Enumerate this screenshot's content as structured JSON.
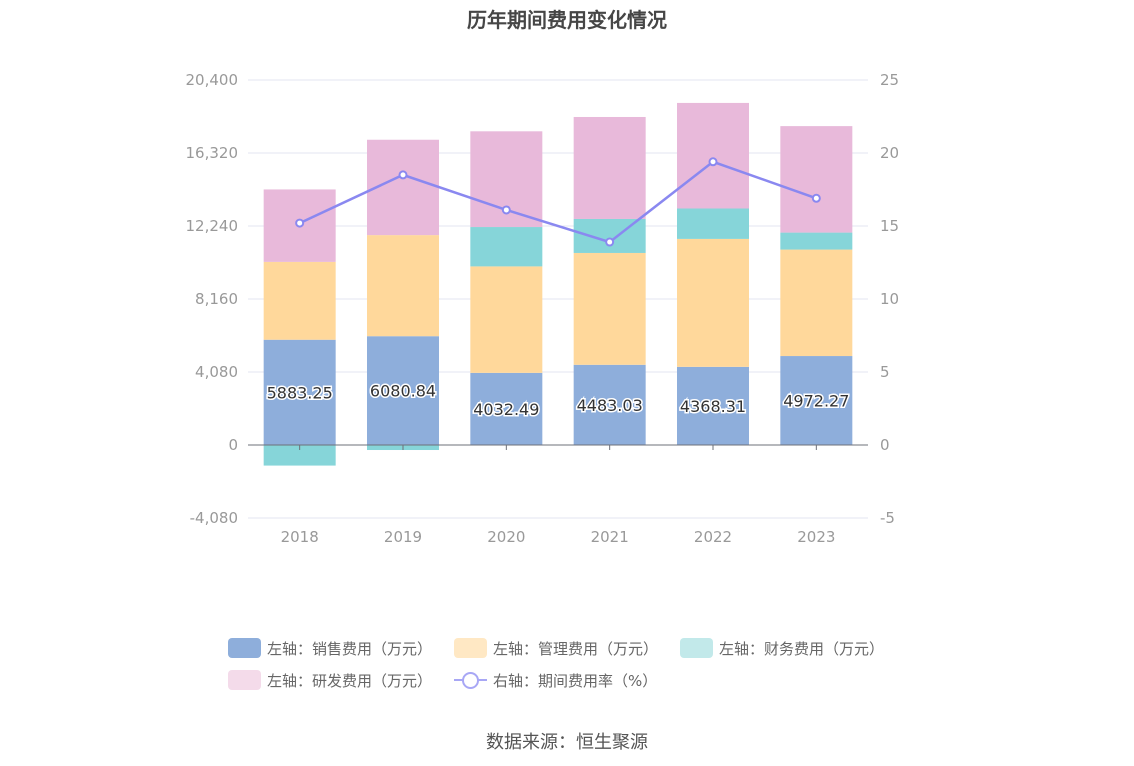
{
  "chart_data": {
    "type": "bar",
    "title": "历年期间费用变化情况",
    "categories": [
      "2018",
      "2019",
      "2020",
      "2021",
      "2022",
      "2023"
    ],
    "left_axis": {
      "min": -4080,
      "max": 20400,
      "ticks": [
        "-4,080",
        "0",
        "4,080",
        "8,160",
        "12,240",
        "16,320",
        "20,400"
      ]
    },
    "right_axis": {
      "min": -5,
      "max": 25,
      "ticks": [
        "-5",
        "0",
        "5",
        "10",
        "15",
        "20",
        "25"
      ]
    },
    "series": [
      {
        "name": "左轴：销售费用（万元）",
        "type": "bar",
        "axis": "left",
        "color": "#8eaedb",
        "values": [
          5883.25,
          6080.84,
          4032.49,
          4483.03,
          4368.31,
          4972.27
        ],
        "labels": [
          "5883.25",
          "6080.84",
          "4032.49",
          "4483.03",
          "4368.31",
          "4972.27"
        ]
      },
      {
        "name": "左轴：管理费用（万元）",
        "type": "bar",
        "axis": "left",
        "color": "#ffd89b",
        "values": [
          4350,
          5650,
          5950,
          6250,
          7150,
          5950
        ]
      },
      {
        "name": "左轴：财务费用（万元）",
        "type": "bar",
        "axis": "left",
        "color": "#86d5d9",
        "values": [
          -1150,
          -280,
          2200,
          1900,
          1700,
          950
        ]
      },
      {
        "name": "左轴：研发费用（万元）",
        "type": "bar",
        "axis": "left",
        "color": "#e8b9da",
        "values": [
          4050,
          5330,
          5350,
          5700,
          5900,
          5950
        ]
      },
      {
        "name": "右轴：期间费用率（%）",
        "type": "line",
        "axis": "right",
        "color": "#8a88f0",
        "values": [
          15.2,
          18.5,
          16.1,
          13.9,
          19.4,
          16.9
        ]
      }
    ]
  },
  "legend": {
    "items": [
      {
        "label": "左轴：销售费用（万元）",
        "color": "#8eaedb"
      },
      {
        "label": "左轴：管理费用（万元）",
        "color": "#ffe8c4"
      },
      {
        "label": "左轴：财务费用（万元）",
        "color": "#c2e9ea"
      },
      {
        "label": "左轴：研发费用（万元）",
        "color": "#f4dbea"
      },
      {
        "label": "右轴：期间费用率（%）",
        "color": "#a8a7f5"
      }
    ]
  },
  "source": "数据来源：恒生聚源"
}
